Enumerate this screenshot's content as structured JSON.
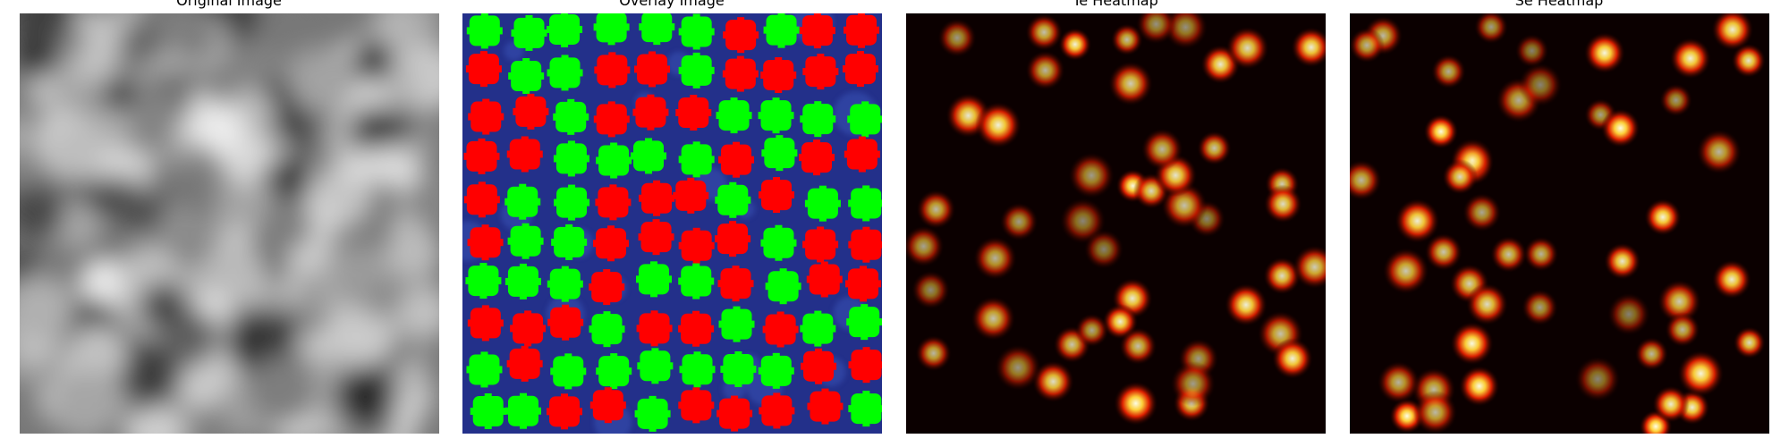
{
  "panels": [
    {
      "title": "Original Image"
    },
    {
      "title": "Overlay Image"
    },
    {
      "title": "Te Heatmap"
    },
    {
      "title": "Se Heatmap"
    }
  ]
}
